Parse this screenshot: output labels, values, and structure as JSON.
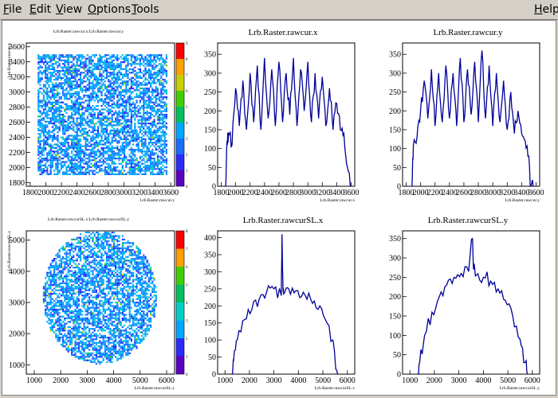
{
  "menu": {
    "file": {
      "first": "F",
      "rest": "ile"
    },
    "edit": {
      "first": "E",
      "rest": "dit"
    },
    "view": {
      "first": "V",
      "rest": "iew"
    },
    "options": {
      "first": "O",
      "rest": "ptions"
    },
    "tools": {
      "first": "T",
      "rest": "ools"
    },
    "help": {
      "first": "H",
      "rest": "elp"
    }
  },
  "colors": {
    "hist_line": "#000099",
    "palette": [
      "#5a00c0",
      "#2a2aff",
      "#1a6cff",
      "#00a8ff",
      "#00d0c8",
      "#00c060",
      "#40d000",
      "#c8d000",
      "#ffa000",
      "#ff0000"
    ]
  },
  "pads": {
    "rawcur_2d": {
      "title": "Lrb.Raster.rawcur.x:Lrb.Raster.rawcur.y",
      "xlabel": "Lrb.Raster.rawcur.y",
      "ylabel": "Lrb.Raster.rawcur.x",
      "xticks": [
        "1800",
        "2000",
        "2200",
        "2400",
        "2600",
        "2800",
        "3000",
        "3200",
        "3400",
        "3600"
      ],
      "yticks": [
        "1800",
        "2000",
        "2200",
        "2400",
        "2600",
        "2800",
        "3000",
        "3200",
        "3400",
        "3600"
      ],
      "zticks": [
        "0",
        "1",
        "2",
        "3",
        "4",
        "5",
        "6",
        "7",
        "8",
        "9"
      ]
    },
    "rawcur_x": {
      "title": "Lrb.Raster.rawcur.x",
      "xlabel": "Lrb.Raster.rawcur.x",
      "xticks": [
        "1800",
        "2000",
        "2200",
        "2400",
        "2600",
        "2800",
        "3000",
        "3200",
        "3400",
        "3600"
      ],
      "yticks": [
        "0",
        "50",
        "100",
        "150",
        "200",
        "250",
        "300",
        "350"
      ]
    },
    "rawcur_y": {
      "title": "Lrb.Raster.rawcur.y",
      "xlabel": "Lrb.Raster.rawcur.y",
      "xticks": [
        "1800",
        "2000",
        "2200",
        "2400",
        "2600",
        "2800",
        "3000",
        "3200",
        "3400",
        "3600"
      ],
      "yticks": [
        "0",
        "50",
        "100",
        "150",
        "200",
        "250",
        "300",
        "350"
      ]
    },
    "rawcursl_2d": {
      "title": "Lrb.Raster.rawcurSL.x:Lrb.Raster.rawcurSL.y",
      "xlabel": "Lrb.Raster.rawcurSL.y",
      "ylabel": "Lrb.Raster.rawcurSL.x",
      "xticks": [
        "1000",
        "2000",
        "3000",
        "4000",
        "5000",
        "6000"
      ],
      "yticks": [
        "1000",
        "2000",
        "3000",
        "4000",
        "5000"
      ],
      "zticks": [
        "0",
        "1",
        "2",
        "3",
        "4",
        "5",
        "6",
        "7",
        "8"
      ]
    },
    "rawcursl_x": {
      "title": "Lrb.Raster.rawcurSL.x",
      "xlabel": "Lrb.Raster.rawcurSL.x",
      "xticks": [
        "1000",
        "2000",
        "3000",
        "4000",
        "5000",
        "6000"
      ],
      "yticks": [
        "0",
        "50",
        "100",
        "150",
        "200",
        "250",
        "300",
        "350",
        "400"
      ]
    },
    "rawcursl_y": {
      "title": "Lrb.Raster.rawcurSL.y",
      "xlabel": "Lrb.Raster.rawcurSL.y",
      "xticks": [
        "1000",
        "2000",
        "3000",
        "4000",
        "5000",
        "6000"
      ],
      "yticks": [
        "0",
        "50",
        "100",
        "150",
        "200",
        "250",
        "300",
        "350"
      ]
    }
  },
  "chart_data": [
    {
      "type": "heatmap",
      "title": "Lrb.Raster.rawcur.x:Lrb.Raster.rawcur.y",
      "xlabel": "Lrb.Raster.rawcur.y",
      "ylabel": "Lrb.Raster.rawcur.x",
      "xlim": [
        1750,
        3650
      ],
      "ylim": [
        1750,
        3650
      ],
      "zlim": [
        0,
        9
      ],
      "shape": "square",
      "region": {
        "x": [
          1880,
          3540
        ],
        "y": [
          1920,
          3520
        ]
      }
    },
    {
      "type": "line",
      "title": "Lrb.Raster.rawcur.x",
      "xlabel": "Lrb.Raster.rawcur.x",
      "xlim": [
        1750,
        3650
      ],
      "ylim": [
        0,
        380
      ],
      "x": [
        1860,
        1880,
        1900,
        1950,
        2000,
        2050,
        2100,
        2150,
        2200,
        2250,
        2300,
        2350,
        2400,
        2450,
        2500,
        2550,
        2600,
        2650,
        2700,
        2750,
        2800,
        2850,
        2900,
        2950,
        3000,
        3050,
        3100,
        3150,
        3200,
        3250,
        3300,
        3350,
        3400,
        3450,
        3500,
        3550,
        3600
      ],
      "y": [
        0,
        120,
        140,
        110,
        260,
        160,
        280,
        150,
        300,
        170,
        320,
        150,
        340,
        180,
        310,
        160,
        330,
        170,
        300,
        190,
        340,
        160,
        310,
        200,
        330,
        170,
        300,
        180,
        290,
        160,
        260,
        150,
        220,
        150,
        140,
        50,
        0
      ]
    },
    {
      "type": "line",
      "title": "Lrb.Raster.rawcur.y",
      "xlabel": "Lrb.Raster.rawcur.y",
      "xlim": [
        1750,
        3650
      ],
      "ylim": [
        0,
        380
      ],
      "x": [
        1880,
        1900,
        1950,
        2000,
        2050,
        2100,
        2150,
        2200,
        2250,
        2300,
        2350,
        2400,
        2450,
        2500,
        2550,
        2600,
        2650,
        2700,
        2750,
        2800,
        2850,
        2900,
        2950,
        3000,
        3050,
        3100,
        3150,
        3200,
        3250,
        3300,
        3350,
        3400,
        3450,
        3500,
        3520,
        3560
      ],
      "y": [
        0,
        110,
        130,
        200,
        280,
        180,
        310,
        160,
        300,
        170,
        320,
        180,
        300,
        160,
        340,
        170,
        310,
        190,
        330,
        170,
        360,
        180,
        320,
        160,
        300,
        170,
        280,
        150,
        250,
        140,
        200,
        140,
        120,
        80,
        0,
        0
      ]
    },
    {
      "type": "heatmap",
      "title": "Lrb.Raster.rawcurSL.x:Lrb.Raster.rawcurSL.y",
      "xlabel": "Lrb.Raster.rawcurSL.y",
      "ylabel": "Lrb.Raster.rawcurSL.x",
      "xlim": [
        700,
        6300
      ],
      "ylim": [
        700,
        5300
      ],
      "zlim": [
        0,
        8
      ],
      "shape": "disk",
      "region": {
        "cx": 3450,
        "cy": 3200,
        "r": 2150
      }
    },
    {
      "type": "line",
      "title": "Lrb.Raster.rawcurSL.x",
      "xlabel": "Lrb.Raster.rawcurSL.x",
      "xlim": [
        700,
        6300
      ],
      "ylim": [
        0,
        420
      ],
      "x": [
        1300,
        1350,
        1500,
        1800,
        2100,
        2400,
        2700,
        3000,
        3300,
        3330,
        3370,
        3400,
        3600,
        3900,
        4200,
        4500,
        4800,
        5100,
        5400,
        5500,
        5600
      ],
      "y": [
        0,
        40,
        100,
        160,
        190,
        220,
        240,
        250,
        230,
        410,
        250,
        235,
        250,
        245,
        240,
        220,
        190,
        160,
        100,
        40,
        0
      ]
    },
    {
      "type": "line",
      "title": "Lrb.Raster.rawcurSL.y",
      "xlabel": "Lrb.Raster.rawcurSL.y",
      "xlim": [
        700,
        6300
      ],
      "ylim": [
        0,
        370
      ],
      "x": [
        1300,
        1400,
        1600,
        1900,
        2200,
        2500,
        2800,
        3100,
        3400,
        3550,
        3600,
        3700,
        4000,
        4300,
        4600,
        4900,
        5200,
        5500,
        5700,
        5800
      ],
      "y": [
        0,
        30,
        100,
        160,
        200,
        230,
        250,
        260,
        265,
        350,
        270,
        255,
        250,
        240,
        220,
        190,
        150,
        90,
        30,
        0
      ]
    }
  ]
}
